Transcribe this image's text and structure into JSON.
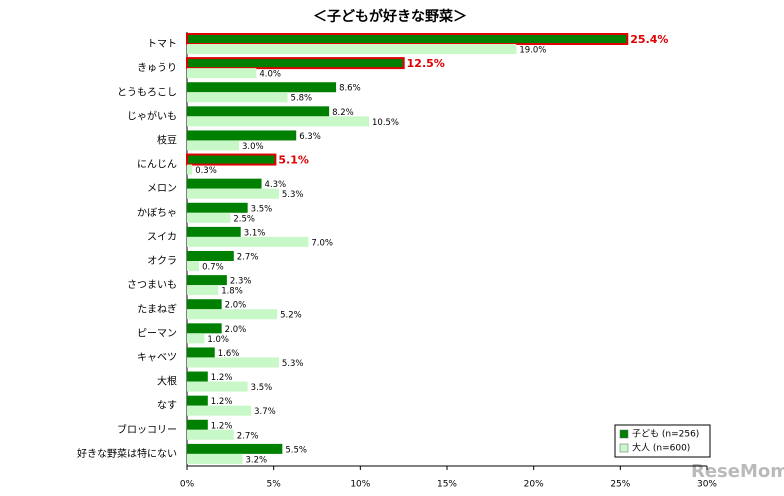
{
  "chart_data": {
    "type": "hbar",
    "title": "＜子どもが好きな野菜＞",
    "categories": [
      "トマト",
      "きゅうり",
      "とうもろこし",
      "じゃがいも",
      "枝豆",
      "にんじん",
      "メロン",
      "かぼちゃ",
      "スイカ",
      "オクラ",
      "さつまいも",
      "たまねぎ",
      "ピーマン",
      "キャベツ",
      "大根",
      "なす",
      "ブロッコリー",
      "好きな野菜は特にない"
    ],
    "series": [
      {
        "name": "子ども (n=256)",
        "color": "#008000",
        "values": [
          25.4,
          12.5,
          8.6,
          8.2,
          6.3,
          5.1,
          4.3,
          3.5,
          3.1,
          2.7,
          2.3,
          2.0,
          2.0,
          1.6,
          1.2,
          1.2,
          1.2,
          5.5
        ],
        "value_labels": [
          "25.4%",
          "12.5%",
          "8.6%",
          "8.2%",
          "6.3%",
          "5.1%",
          "4.3%",
          "3.5%",
          "3.1%",
          "2.7%",
          "2.3%",
          "2.0%",
          "2.0%",
          "1.6%",
          "1.2%",
          "1.2%",
          "1.2%",
          "5.5%"
        ]
      },
      {
        "name": "大人 (n=600)",
        "color": "#c8f7c8",
        "values": [
          19.0,
          4.0,
          5.8,
          10.5,
          3.0,
          0.3,
          5.3,
          2.5,
          7.0,
          0.7,
          1.8,
          5.2,
          1.0,
          5.3,
          3.5,
          3.7,
          2.7,
          3.2
        ],
        "value_labels": [
          "19.0%",
          "4.0%",
          "5.8%",
          "10.5%",
          "3.0%",
          "0.3%",
          "5.3%",
          "2.5%",
          "7.0%",
          "0.7%",
          "1.8%",
          "5.2%",
          "1.0%",
          "5.3%",
          "3.5%",
          "3.7%",
          "2.7%",
          "3.2%"
        ]
      }
    ],
    "highlight": [
      0,
      1,
      5
    ],
    "highlight_color": "#e00000",
    "xlim": [
      0,
      30
    ],
    "xticks": [
      {
        "value": 0,
        "label": "0%"
      },
      {
        "value": 5,
        "label": "5%"
      },
      {
        "value": 10,
        "label": "10%"
      },
      {
        "value": 15,
        "label": "15%"
      },
      {
        "value": 20,
        "label": "20%"
      },
      {
        "value": 25,
        "label": "25%"
      },
      {
        "value": 30,
        "label": "30%"
      }
    ],
    "legend": "bottom-right",
    "watermark": "ReseMom"
  }
}
